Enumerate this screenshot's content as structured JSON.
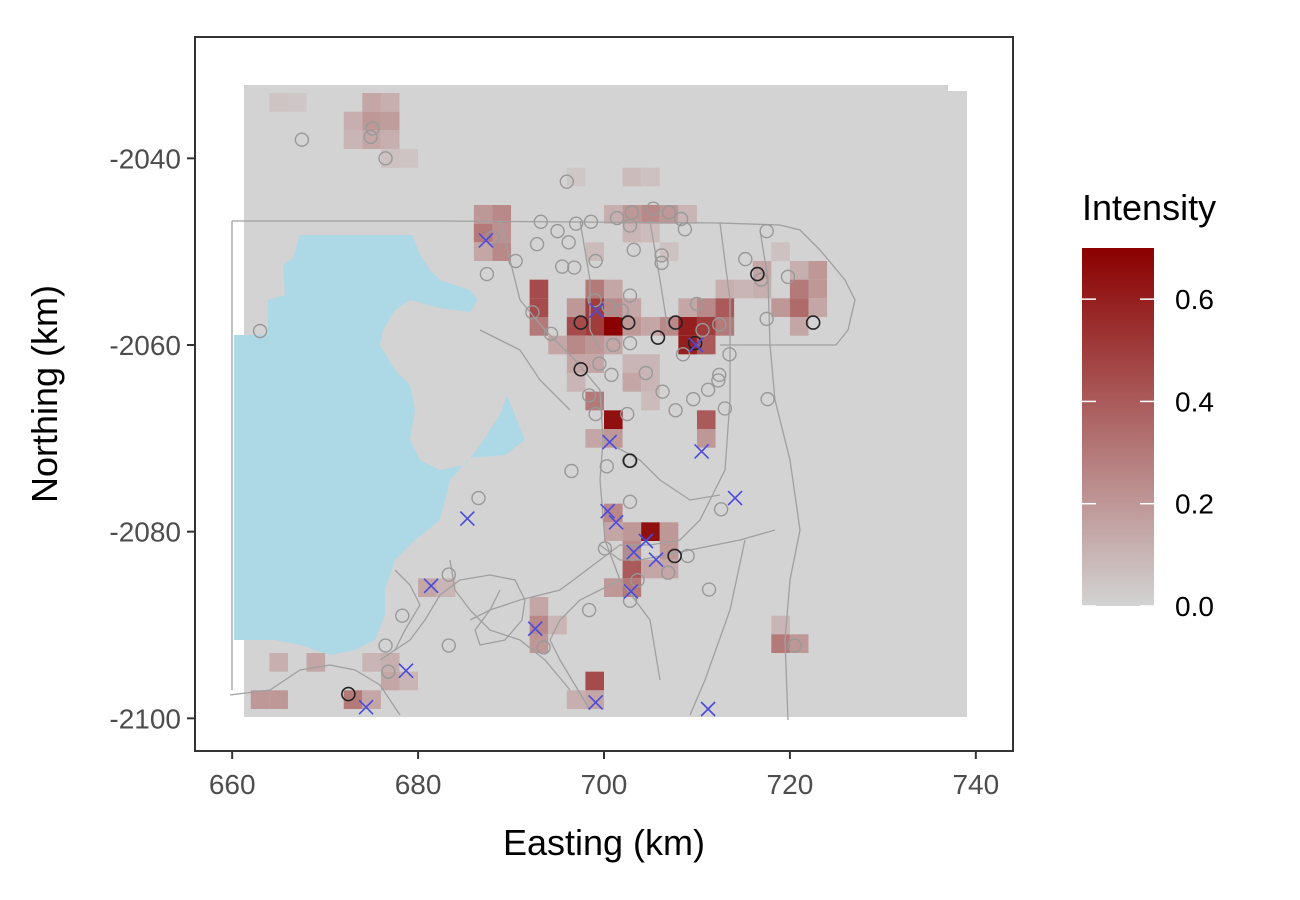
{
  "chart_data": {
    "type": "heatmap",
    "xlabel": "Easting (km)",
    "ylabel": "Northing (km)",
    "xlim": [
      656,
      744
    ],
    "ylim": [
      -2103.5,
      -2027
    ],
    "x_ticks": [
      660,
      680,
      700,
      720,
      740
    ],
    "y_ticks": [
      -2100,
      -2080,
      -2060,
      -2040
    ],
    "x_tick_labels": [
      "660",
      "680",
      "700",
      "720",
      "740"
    ],
    "y_tick_labels": [
      "-2100",
      "-2080",
      "-2060",
      "-2040"
    ],
    "grid": false,
    "legend": {
      "title": "Intensity",
      "placement": "right",
      "min": 0.0,
      "max": 0.7,
      "ticks": [
        0.0,
        0.2,
        0.4,
        0.6
      ],
      "tick_labels": [
        "0.0",
        "0.2",
        "0.4",
        "0.6"
      ],
      "low_color": "#d3d3d3",
      "high_color": "#8b0000"
    },
    "background_color": "#d3d3d3",
    "water_color": "#add8e6",
    "road_color": "#a0a0a0",
    "cell_size_km": 2,
    "intensity_cells": [
      {
        "x": 665,
        "y": -2034,
        "v": 0.05
      },
      {
        "x": 667,
        "y": -2034,
        "v": 0.04
      },
      {
        "x": 675,
        "y": -2034,
        "v": 0.15
      },
      {
        "x": 677,
        "y": -2034,
        "v": 0.12
      },
      {
        "x": 673,
        "y": -2036,
        "v": 0.12
      },
      {
        "x": 675,
        "y": -2036,
        "v": 0.2
      },
      {
        "x": 677,
        "y": -2036,
        "v": 0.18
      },
      {
        "x": 673,
        "y": -2038,
        "v": 0.1
      },
      {
        "x": 675,
        "y": -2038,
        "v": 0.15
      },
      {
        "x": 677,
        "y": -2038,
        "v": 0.12
      },
      {
        "x": 677,
        "y": -2040,
        "v": 0.06
      },
      {
        "x": 679,
        "y": -2040,
        "v": 0.05
      },
      {
        "x": 697,
        "y": -2042,
        "v": 0.04
      },
      {
        "x": 703,
        "y": -2042,
        "v": 0.08
      },
      {
        "x": 705,
        "y": -2042,
        "v": 0.06
      },
      {
        "x": 687,
        "y": -2046,
        "v": 0.2
      },
      {
        "x": 689,
        "y": -2046,
        "v": 0.25
      },
      {
        "x": 701,
        "y": -2046,
        "v": 0.12
      },
      {
        "x": 703,
        "y": -2046,
        "v": 0.2
      },
      {
        "x": 705,
        "y": -2046,
        "v": 0.25
      },
      {
        "x": 707,
        "y": -2046,
        "v": 0.2
      },
      {
        "x": 709,
        "y": -2046,
        "v": 0.1
      },
      {
        "x": 687,
        "y": -2048,
        "v": 0.3
      },
      {
        "x": 689,
        "y": -2048,
        "v": 0.22
      },
      {
        "x": 703,
        "y": -2048,
        "v": 0.1
      },
      {
        "x": 705,
        "y": -2048,
        "v": 0.08
      },
      {
        "x": 687,
        "y": -2050,
        "v": 0.15
      },
      {
        "x": 689,
        "y": -2050,
        "v": 0.25
      },
      {
        "x": 699,
        "y": -2050,
        "v": 0.08
      },
      {
        "x": 707,
        "y": -2050,
        "v": 0.06
      },
      {
        "x": 719,
        "y": -2050,
        "v": 0.06
      },
      {
        "x": 717,
        "y": -2052,
        "v": 0.15
      },
      {
        "x": 721,
        "y": -2052,
        "v": 0.12
      },
      {
        "x": 723,
        "y": -2052,
        "v": 0.2
      },
      {
        "x": 693,
        "y": -2054,
        "v": 0.45
      },
      {
        "x": 699,
        "y": -2054,
        "v": 0.3
      },
      {
        "x": 701,
        "y": -2054,
        "v": 0.15
      },
      {
        "x": 713,
        "y": -2054,
        "v": 0.12
      },
      {
        "x": 715,
        "y": -2054,
        "v": 0.1
      },
      {
        "x": 717,
        "y": -2054,
        "v": 0.12
      },
      {
        "x": 721,
        "y": -2054,
        "v": 0.3
      },
      {
        "x": 723,
        "y": -2054,
        "v": 0.2
      },
      {
        "x": 693,
        "y": -2056,
        "v": 0.45
      },
      {
        "x": 697,
        "y": -2056,
        "v": 0.2
      },
      {
        "x": 699,
        "y": -2056,
        "v": 0.5
      },
      {
        "x": 701,
        "y": -2056,
        "v": 0.25
      },
      {
        "x": 703,
        "y": -2056,
        "v": 0.15
      },
      {
        "x": 709,
        "y": -2056,
        "v": 0.15
      },
      {
        "x": 711,
        "y": -2056,
        "v": 0.25
      },
      {
        "x": 713,
        "y": -2056,
        "v": 0.4
      },
      {
        "x": 719,
        "y": -2056,
        "v": 0.2
      },
      {
        "x": 721,
        "y": -2056,
        "v": 0.35
      },
      {
        "x": 723,
        "y": -2056,
        "v": 0.15
      },
      {
        "x": 693,
        "y": -2058,
        "v": 0.3
      },
      {
        "x": 697,
        "y": -2058,
        "v": 0.45
      },
      {
        "x": 699,
        "y": -2058,
        "v": 0.5
      },
      {
        "x": 701,
        "y": -2058,
        "v": 0.7
      },
      {
        "x": 703,
        "y": -2058,
        "v": 0.2
      },
      {
        "x": 705,
        "y": -2058,
        "v": 0.15
      },
      {
        "x": 707,
        "y": -2058,
        "v": 0.25
      },
      {
        "x": 709,
        "y": -2058,
        "v": 0.6
      },
      {
        "x": 711,
        "y": -2058,
        "v": 0.5
      },
      {
        "x": 713,
        "y": -2058,
        "v": 0.3
      },
      {
        "x": 721,
        "y": -2058,
        "v": 0.15
      },
      {
        "x": 695,
        "y": -2060,
        "v": 0.15
      },
      {
        "x": 697,
        "y": -2060,
        "v": 0.25
      },
      {
        "x": 699,
        "y": -2060,
        "v": 0.2
      },
      {
        "x": 701,
        "y": -2060,
        "v": 0.15
      },
      {
        "x": 709,
        "y": -2060,
        "v": 0.6
      },
      {
        "x": 711,
        "y": -2060,
        "v": 0.4
      },
      {
        "x": 697,
        "y": -2062,
        "v": 0.15
      },
      {
        "x": 699,
        "y": -2062,
        "v": 0.15
      },
      {
        "x": 703,
        "y": -2062,
        "v": 0.1
      },
      {
        "x": 705,
        "y": -2062,
        "v": 0.1
      },
      {
        "x": 697,
        "y": -2064,
        "v": 0.1
      },
      {
        "x": 703,
        "y": -2064,
        "v": 0.15
      },
      {
        "x": 705,
        "y": -2064,
        "v": 0.1
      },
      {
        "x": 699,
        "y": -2066,
        "v": 0.3
      },
      {
        "x": 705,
        "y": -2066,
        "v": 0.08
      },
      {
        "x": 701,
        "y": -2068,
        "v": 0.65
      },
      {
        "x": 711,
        "y": -2068,
        "v": 0.4
      },
      {
        "x": 699,
        "y": -2070,
        "v": 0.15
      },
      {
        "x": 701,
        "y": -2070,
        "v": 0.2
      },
      {
        "x": 711,
        "y": -2070,
        "v": 0.2
      },
      {
        "x": 701,
        "y": -2078,
        "v": 0.25
      },
      {
        "x": 701,
        "y": -2080,
        "v": 0.15
      },
      {
        "x": 703,
        "y": -2080,
        "v": 0.2
      },
      {
        "x": 705,
        "y": -2080,
        "v": 0.65
      },
      {
        "x": 707,
        "y": -2080,
        "v": 0.2
      },
      {
        "x": 703,
        "y": -2082,
        "v": 0.25
      },
      {
        "x": 707,
        "y": -2082,
        "v": 0.2
      },
      {
        "x": 703,
        "y": -2084,
        "v": 0.4
      },
      {
        "x": 705,
        "y": -2084,
        "v": 0.15
      },
      {
        "x": 707,
        "y": -2084,
        "v": 0.15
      },
      {
        "x": 701,
        "y": -2086,
        "v": 0.2
      },
      {
        "x": 703,
        "y": -2086,
        "v": 0.3
      },
      {
        "x": 681,
        "y": -2086,
        "v": 0.15
      },
      {
        "x": 683,
        "y": -2086,
        "v": 0.1
      },
      {
        "x": 693,
        "y": -2088,
        "v": 0.15
      },
      {
        "x": 693,
        "y": -2090,
        "v": 0.25
      },
      {
        "x": 695,
        "y": -2090,
        "v": 0.1
      },
      {
        "x": 693,
        "y": -2092,
        "v": 0.2
      },
      {
        "x": 719,
        "y": -2090,
        "v": 0.1
      },
      {
        "x": 719,
        "y": -2092,
        "v": 0.3
      },
      {
        "x": 721,
        "y": -2092,
        "v": 0.2
      },
      {
        "x": 665,
        "y": -2094,
        "v": 0.12
      },
      {
        "x": 669,
        "y": -2094,
        "v": 0.15
      },
      {
        "x": 675,
        "y": -2094,
        "v": 0.1
      },
      {
        "x": 677,
        "y": -2094,
        "v": 0.12
      },
      {
        "x": 677,
        "y": -2096,
        "v": 0.15
      },
      {
        "x": 679,
        "y": -2096,
        "v": 0.1
      },
      {
        "x": 699,
        "y": -2096,
        "v": 0.45
      },
      {
        "x": 697,
        "y": -2098,
        "v": 0.12
      },
      {
        "x": 699,
        "y": -2098,
        "v": 0.15
      },
      {
        "x": 663,
        "y": -2098,
        "v": 0.2
      },
      {
        "x": 665,
        "y": -2098,
        "v": 0.2
      },
      {
        "x": 673,
        "y": -2098,
        "v": 0.3
      },
      {
        "x": 675,
        "y": -2098,
        "v": 0.15
      }
    ],
    "open_circles": [
      [
        667.5,
        -2038
      ],
      [
        675.1,
        -2036.8
      ],
      [
        674.9,
        -2037.7
      ],
      [
        676.5,
        -2040
      ],
      [
        663,
        -2058.5
      ],
      [
        696,
        -2042.5
      ],
      [
        690.5,
        -2051
      ],
      [
        693.2,
        -2046.8
      ],
      [
        695,
        -2047.8
      ],
      [
        696.2,
        -2049
      ],
      [
        692.8,
        -2049.2
      ],
      [
        697,
        -2047
      ],
      [
        698.6,
        -2046.8
      ],
      [
        701.4,
        -2046.4
      ],
      [
        702.8,
        -2047.2
      ],
      [
        703.2,
        -2049.8
      ],
      [
        703,
        -2045.8
      ],
      [
        705.3,
        -2045.4
      ],
      [
        707,
        -2045.8
      ],
      [
        708.3,
        -2046.5
      ],
      [
        708.7,
        -2047.6
      ],
      [
        706.2,
        -2050.4
      ],
      [
        706.2,
        -2051.2
      ],
      [
        699.1,
        -2051
      ],
      [
        695.5,
        -2051.6
      ],
      [
        696.8,
        -2051.7
      ],
      [
        700.5,
        -2055.9
      ],
      [
        701.9,
        -2056.3
      ],
      [
        702.8,
        -2054.7
      ],
      [
        692.3,
        -2056.5
      ],
      [
        694.3,
        -2058.8
      ],
      [
        699,
        -2055.2
      ],
      [
        701,
        -2060
      ],
      [
        702.8,
        -2059.8
      ],
      [
        699.5,
        -2062
      ],
      [
        698.4,
        -2065.4
      ],
      [
        700.8,
        -2063.2
      ],
      [
        704.5,
        -2063
      ],
      [
        706.3,
        -2065
      ],
      [
        702.5,
        -2067.4
      ],
      [
        707.7,
        -2067
      ],
      [
        709.6,
        -2065.8
      ],
      [
        711.2,
        -2064.8
      ],
      [
        712.4,
        -2063.2
      ],
      [
        712.3,
        -2063.8
      ],
      [
        713,
        -2066.8
      ],
      [
        710.6,
        -2058.4
      ],
      [
        712.4,
        -2057.8
      ],
      [
        708.5,
        -2061
      ],
      [
        717.5,
        -2057.2
      ],
      [
        717.5,
        -2047.8
      ],
      [
        715.2,
        -2050.8
      ],
      [
        716.9,
        -2053
      ],
      [
        719.8,
        -2052.7
      ],
      [
        710,
        -2055.6
      ],
      [
        713.5,
        -2061
      ],
      [
        717.6,
        -2065.8
      ],
      [
        700.3,
        -2073
      ],
      [
        702.7,
        -2072.4
      ],
      [
        699.1,
        -2067.4
      ],
      [
        696.5,
        -2073.5
      ],
      [
        702.8,
        -2076.8
      ],
      [
        712.6,
        -2077.6
      ],
      [
        686.5,
        -2076.4
      ],
      [
        688,
        -2048.5
      ],
      [
        687.4,
        -2052.4
      ],
      [
        700.1,
        -2081.8
      ],
      [
        703.1,
        -2082.4
      ],
      [
        703.6,
        -2085.2
      ],
      [
        706.9,
        -2084.4
      ],
      [
        702.8,
        -2087.4
      ],
      [
        711.3,
        -2086.2
      ],
      [
        683.3,
        -2084.6
      ],
      [
        683.3,
        -2092.2
      ],
      [
        678.3,
        -2089
      ],
      [
        676.5,
        -2092.2
      ],
      [
        676.8,
        -2095
      ],
      [
        693.5,
        -2092.4
      ],
      [
        698.4,
        -2088.4
      ],
      [
        720.5,
        -2092.2
      ],
      [
        709,
        -2082.6
      ]
    ],
    "dark_circles": [
      [
        697.5,
        -2057.6
      ],
      [
        702.6,
        -2057.6
      ],
      [
        707.7,
        -2057.6
      ],
      [
        705.8,
        -2059.2
      ],
      [
        709.8,
        -2059.8
      ],
      [
        722.5,
        -2057.6
      ],
      [
        697.5,
        -2062.6
      ],
      [
        702.8,
        -2072.4
      ],
      [
        707.6,
        -2082.6
      ],
      [
        672.5,
        -2097.4
      ],
      [
        716.5,
        -2052.4
      ]
    ],
    "crosses": [
      [
        687.3,
        -2048.8
      ],
      [
        699.2,
        -2056.3
      ],
      [
        709.9,
        -2060
      ],
      [
        700.6,
        -2070.4
      ],
      [
        710.5,
        -2071.4
      ],
      [
        714.1,
        -2076.4
      ],
      [
        685.3,
        -2078.6
      ],
      [
        700.4,
        -2077.8
      ],
      [
        701.3,
        -2079
      ],
      [
        704.5,
        -2081
      ],
      [
        703.2,
        -2082.2
      ],
      [
        705.6,
        -2083
      ],
      [
        681.4,
        -2085.8
      ],
      [
        702.9,
        -2086.4
      ],
      [
        692.6,
        -2090.4
      ],
      [
        678.7,
        -2094.9
      ],
      [
        674.4,
        -2098.8
      ],
      [
        699.1,
        -2098.3
      ],
      [
        711.2,
        -2099
      ]
    ]
  }
}
